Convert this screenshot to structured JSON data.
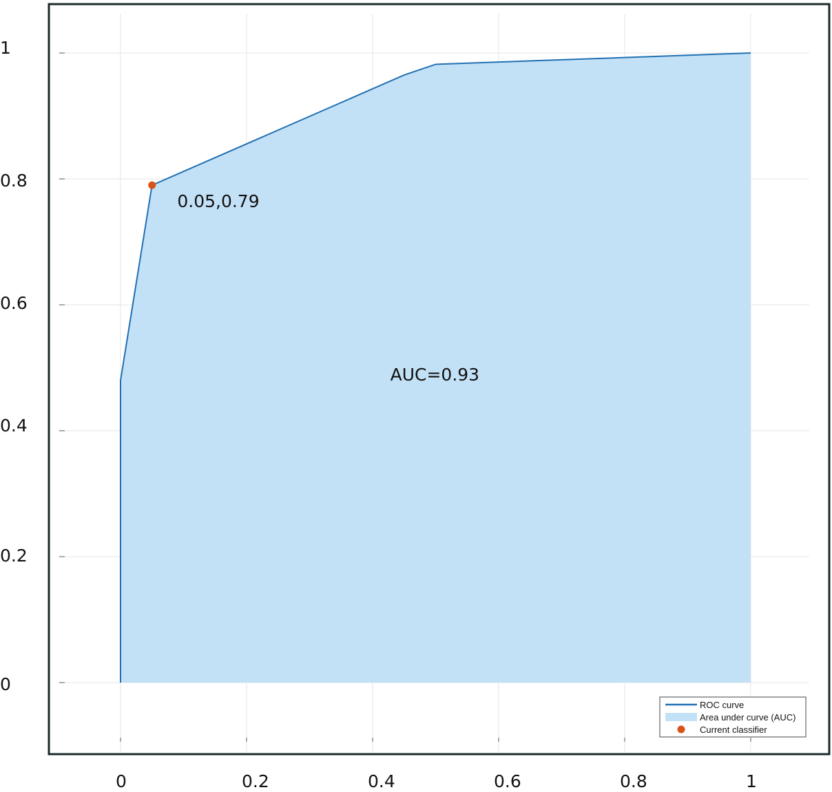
{
  "chart_data": {
    "type": "area",
    "title": "",
    "xlabel": "",
    "ylabel": "",
    "xlim": [
      -0.1,
      1.1
    ],
    "ylim": [
      -0.1,
      1.1
    ],
    "x_ticks": [
      0,
      0.2,
      0.4,
      0.6,
      0.8,
      1
    ],
    "y_ticks": [
      0,
      0.2,
      0.4,
      0.6,
      0.8,
      1
    ],
    "x_tick_labels": [
      "0",
      "0.2",
      "0.4",
      "0.6",
      "0.8",
      "1"
    ],
    "y_tick_labels": [
      "0",
      "0.2",
      "0.4",
      "0.6",
      "0.8",
      "1"
    ],
    "grid": true,
    "series": [
      {
        "name": "ROC curve",
        "x": [
          0,
          0,
          0.05,
          0.45,
          0.5,
          1
        ],
        "y": [
          0,
          0.48,
          0.79,
          0.965,
          0.982,
          1
        ],
        "color": "#1f6fb2"
      }
    ],
    "area": {
      "name": "Area under curve (AUC)",
      "color": "#c3e1f6"
    },
    "marker": {
      "name": "Current classifier",
      "x": 0.05,
      "y": 0.79,
      "color": "#d95319"
    },
    "annotations": [
      {
        "text": "0.05,0.79",
        "x": 0.09,
        "y": 0.755
      },
      {
        "text": "AUC=0.93",
        "x": 0.428,
        "y": 0.48
      }
    ],
    "legend": {
      "position": "bottom-right",
      "entries": [
        "ROC curve",
        "Area under curve (AUC)",
        "Current classifier"
      ]
    }
  }
}
